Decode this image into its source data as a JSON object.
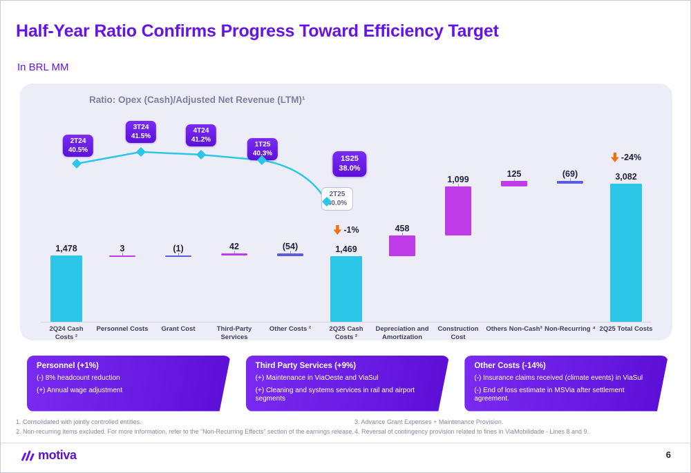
{
  "slide": {
    "title": "Half-Year Ratio Confirms Progress Toward Efficiency Target",
    "subtitle": "In BRL MM",
    "logo_text": "motiva",
    "page_number": "6"
  },
  "colors": {
    "accent_purple": "#6414E6",
    "line_cyan": "#2CC7E8",
    "arrow_orange": "#F0720F",
    "panel_bg": "#EDEDF8",
    "bars": {
      "cyan": "#2CC7E8",
      "magenta": "#C03BE8",
      "indigo": "#5B5BE2"
    }
  },
  "chart_data": {
    "type": "bar",
    "subtype": "waterfall-with-ratio-line",
    "title": "Ratio: Opex (Cash)/Adjusted Net Revenue (LTM)¹",
    "unit": "BRL MM",
    "waterfall": [
      {
        "name": "2q24-cash-costs",
        "label": "2Q24 Cash\nCosts ²",
        "display": "1,478",
        "value": 1478,
        "kind": "total",
        "color": "cyan"
      },
      {
        "name": "personnel-costs",
        "label": "Personnel Costs",
        "display": "3",
        "value": 3,
        "kind": "delta",
        "color": "magenta"
      },
      {
        "name": "grant-cost",
        "label": "Grant Cost",
        "display": "(1)",
        "value": -1,
        "kind": "delta",
        "color": "indigo"
      },
      {
        "name": "third-party-services",
        "label": "Third-Party\nServices",
        "display": "42",
        "value": 42,
        "kind": "delta",
        "color": "magenta"
      },
      {
        "name": "other-costs",
        "label": "Other Costs ²",
        "display": "(54)",
        "value": -54,
        "kind": "delta",
        "color": "indigo"
      },
      {
        "name": "2q25-cash-costs",
        "label": "2Q25 Cash\nCosts ²",
        "display": "1,469",
        "value": 1469,
        "kind": "total",
        "color": "cyan",
        "annotation": {
          "icon": "down-arrow",
          "text": "-1%"
        }
      },
      {
        "name": "depreciation-and-amortization",
        "label": "Depreciation and\nAmortization",
        "display": "458",
        "value": 458,
        "kind": "delta",
        "color": "magenta"
      },
      {
        "name": "construction-cost",
        "label": "Construction\nCost",
        "display": "1,099",
        "value": 1099,
        "kind": "delta",
        "color": "magenta"
      },
      {
        "name": "others-non-cash",
        "label": "Others Non-Cash³",
        "display": "125",
        "value": 125,
        "kind": "delta",
        "color": "magenta"
      },
      {
        "name": "non-recurring",
        "label": "Non-Recurring ⁴",
        "display": "(69)",
        "value": -69,
        "kind": "delta",
        "color": "indigo"
      },
      {
        "name": "2q25-total-costs",
        "label": "2Q25 Total Costs",
        "display": "3,082",
        "value": 3082,
        "kind": "total",
        "color": "cyan",
        "annotation": {
          "icon": "down-arrow",
          "text": "-24%"
        }
      }
    ],
    "ratio_line": {
      "points": [
        {
          "label": "2T24",
          "pct": 40.5,
          "display": "40.5%",
          "style": "purple-tag"
        },
        {
          "label": "3T24",
          "pct": 41.5,
          "display": "41.5%",
          "style": "purple-tag"
        },
        {
          "label": "4T24",
          "pct": 41.2,
          "display": "41.2%",
          "style": "purple-tag"
        },
        {
          "label": "1T25",
          "pct": 40.3,
          "display": "40.3%",
          "style": "purple-tag"
        },
        {
          "label": "2T25",
          "pct": 40.0,
          "display": "40.0%",
          "style": "white-tag"
        }
      ],
      "highlight": {
        "label": "1S25",
        "pct": 38.0,
        "display": "38.0%"
      }
    },
    "ylim": [
      0,
      3200
    ],
    "grid": false,
    "legend": false
  },
  "callouts": [
    {
      "name": "personnel",
      "title": "Personnel (+1%)",
      "lines": [
        "(-) 8% headcount reduction",
        "(+) Annual wage adjustment"
      ]
    },
    {
      "name": "third-party-services",
      "title": "Third Party Services (+9%)",
      "lines": [
        "(+) Maintenance in ViaOeste and ViaSul",
        "(+) Cleaning and systems services in rail and airport segments"
      ]
    },
    {
      "name": "other-costs",
      "title": "Other Costs (-14%)",
      "lines": [
        "(-) Insurance claims received (climate events) in ViaSul",
        "(-) End of loss estimate in MSVia after settlement agreement."
      ]
    }
  ],
  "footnotes_left": [
    "1. Consolidated with jointly controlled entities.",
    "2. Non-recurring items excluded. For more information, refer to the “Non-Recurring Effects” section of the earnings release."
  ],
  "footnotes_right": [
    "3. Advance Grant Expenses + Maintenance Provision.",
    "4. Reversal of contingency provision related to fines in ViaMobilidade - Lines 8 and 9."
  ]
}
